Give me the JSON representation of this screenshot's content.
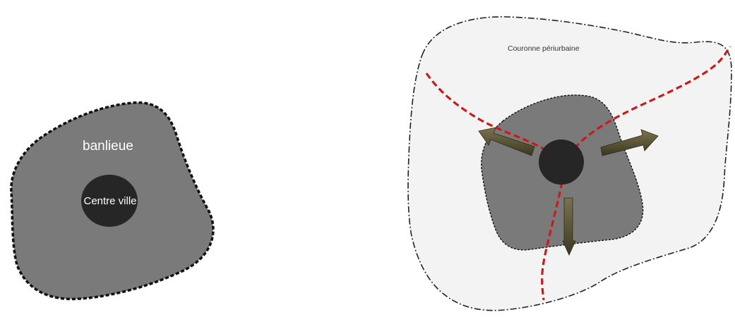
{
  "left_diagram": {
    "suburb_label": "banlieue",
    "city_centre_label": "Centre ville"
  },
  "right_diagram": {
    "periurban_ring_label": "Couronne périurbaine"
  },
  "colors": {
    "suburb_fill": "#7a7a7a",
    "city_centre_fill": "#262626",
    "periurban_fill": "#f3f3f3",
    "road_dashes": "#cc1a1a",
    "arrow_fill": "#5c5638",
    "outline": "#111111"
  }
}
